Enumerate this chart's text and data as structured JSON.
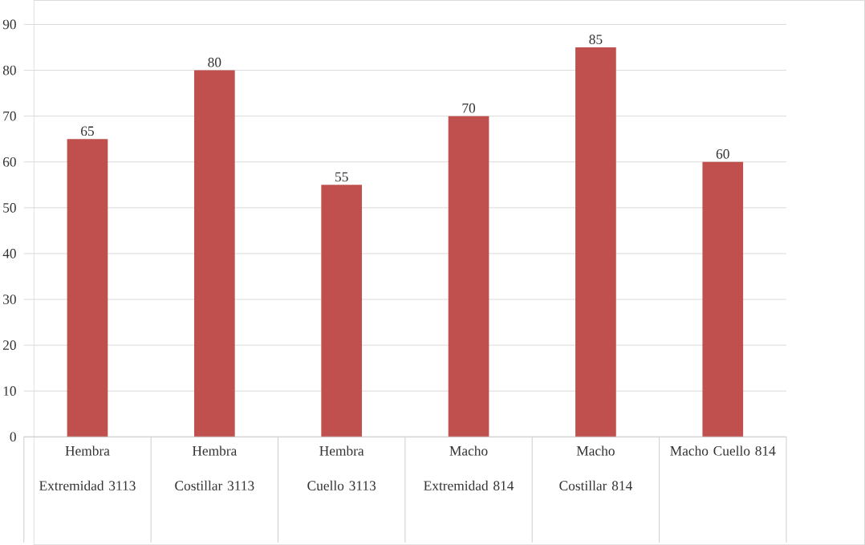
{
  "chart_data": {
    "type": "bar",
    "categories": [
      "Hembra Extremidad 3113",
      "Hembra Costillar 3113",
      "Hembra Cuello 3113",
      "Macho Extremidad 814",
      "Macho Costillar 814",
      "Macho Cuello 814"
    ],
    "values": [
      65,
      80,
      55,
      70,
      85,
      60
    ],
    "color": "#c0504d",
    "ylim": [
      0,
      90
    ],
    "yticks": [
      0,
      10,
      20,
      30,
      40,
      50,
      60,
      70,
      80,
      90
    ],
    "grid": "y",
    "data_labels": true
  }
}
